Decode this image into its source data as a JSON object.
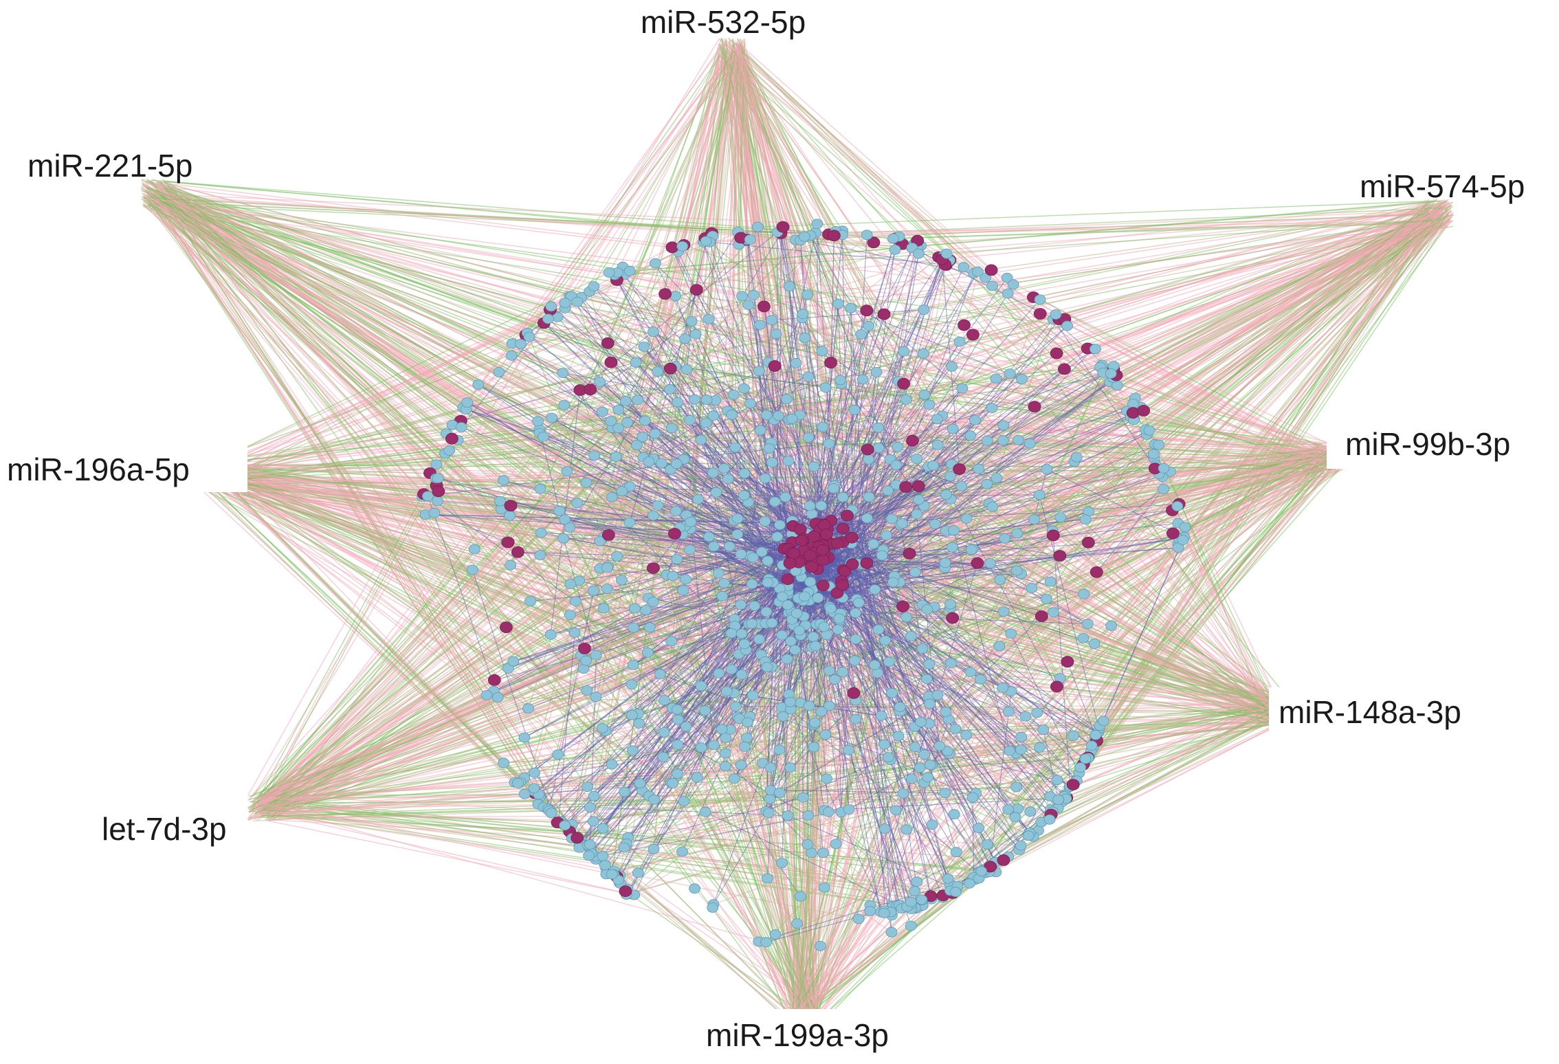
{
  "network": {
    "colors": {
      "pink_edge": "#f4a6b4",
      "green_edge": "#79c25c",
      "tan_edge": "#c9b38f",
      "ppi_edge": "#5b5fae",
      "gene_node": "#8fc4d8",
      "gene_node_stroke": "#5a9ab2",
      "hub_gene_node": "#9b2d6b",
      "label_text": "#1a1a1a"
    },
    "hubs": [
      {
        "id": "miR-532-5p",
        "label": "miR-532-5p"
      },
      {
        "id": "miR-221-5p",
        "label": "miR-221-5p"
      },
      {
        "id": "miR-574-5p",
        "label": "miR-574-5p"
      },
      {
        "id": "miR-196a-5p",
        "label": "miR-196a-5p"
      },
      {
        "id": "miR-99b-3p",
        "label": "miR-99b-3p"
      },
      {
        "id": "miR-148a-3p",
        "label": "miR-148a-3p"
      },
      {
        "id": "let-7d-3p",
        "label": "let-7d-3p"
      },
      {
        "id": "miR-199a-3p",
        "label": "miR-199a-3p"
      }
    ]
  }
}
